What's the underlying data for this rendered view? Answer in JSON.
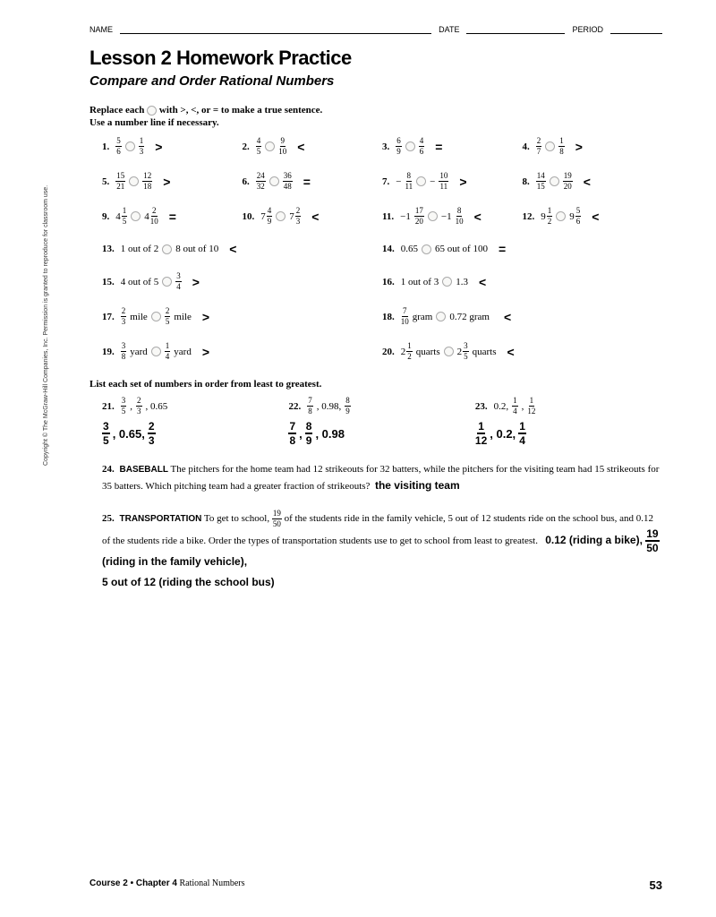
{
  "header": {
    "name": "NAME",
    "date": "DATE",
    "period": "PERIOD"
  },
  "title": "Lesson 2 Homework Practice",
  "subtitle": "Compare and Order Rational Numbers",
  "instr1": "Replace each",
  "instr1b": "with >, <, or = to make a true sentence.",
  "instr2": "Use a number line if necessary.",
  "p": {
    "1": {
      "n": "1.",
      "a": {
        "n": "5",
        "d": "6"
      },
      "b": {
        "n": "1",
        "d": "3"
      },
      "ans": ">"
    },
    "2": {
      "n": "2.",
      "a": {
        "n": "4",
        "d": "5"
      },
      "b": {
        "n": "9",
        "d": "10"
      },
      "ans": "<"
    },
    "3": {
      "n": "3.",
      "a": {
        "n": "6",
        "d": "9"
      },
      "b": {
        "n": "4",
        "d": "6"
      },
      "ans": "="
    },
    "4": {
      "n": "4.",
      "a": {
        "n": "2",
        "d": "7"
      },
      "b": {
        "n": "1",
        "d": "8"
      },
      "ans": ">"
    },
    "5": {
      "n": "5.",
      "a": {
        "n": "15",
        "d": "21"
      },
      "b": {
        "n": "12",
        "d": "18"
      },
      "ans": ">"
    },
    "6": {
      "n": "6.",
      "a": {
        "n": "24",
        "d": "32"
      },
      "b": {
        "n": "36",
        "d": "48"
      },
      "ans": "="
    },
    "7": {
      "n": "7.",
      "a": {
        "s": "−",
        "n": "8",
        "d": "11"
      },
      "b": {
        "s": "−",
        "n": "10",
        "d": "11"
      },
      "ans": ">"
    },
    "8": {
      "n": "8.",
      "a": {
        "n": "14",
        "d": "15"
      },
      "b": {
        "n": "19",
        "d": "20"
      },
      "ans": "<"
    },
    "9": {
      "n": "9.",
      "a": {
        "w": "4",
        "n": "1",
        "d": "5"
      },
      "b": {
        "w": "4",
        "n": "2",
        "d": "10"
      },
      "ans": "="
    },
    "10": {
      "n": "10.",
      "a": {
        "w": "7",
        "n": "4",
        "d": "9"
      },
      "b": {
        "w": "7",
        "n": "2",
        "d": "3"
      },
      "ans": "<"
    },
    "11": {
      "n": "11.",
      "a": {
        "s": "−1",
        "n": "17",
        "d": "20"
      },
      "b": {
        "s": "−1",
        "n": "8",
        "d": "10"
      },
      "ans": "<"
    },
    "12": {
      "n": "12.",
      "a": {
        "w": "9",
        "n": "1",
        "d": "2"
      },
      "b": {
        "w": "9",
        "n": "5",
        "d": "6"
      },
      "ans": "<"
    },
    "13": {
      "n": "13.",
      "a": "1 out of 2",
      "b": "8 out of 10",
      "ans": "<"
    },
    "14": {
      "n": "14.",
      "a": "0.65",
      "b": "65 out of 100",
      "ans": "="
    },
    "15": {
      "n": "15.",
      "a": "4 out of 5",
      "bf": {
        "n": "3",
        "d": "4"
      },
      "ans": ">"
    },
    "16": {
      "n": "16.",
      "a": "1 out of 3",
      "b": "1.3",
      "ans": "<"
    },
    "17": {
      "n": "17.",
      "af": {
        "n": "2",
        "d": "3"
      },
      "au": "mile",
      "bf": {
        "n": "2",
        "d": "5"
      },
      "bu": "mile",
      "ans": ">"
    },
    "18": {
      "n": "18.",
      "af": {
        "n": "7",
        "d": "10"
      },
      "au": "gram",
      "b": "0.72 gram",
      "ans": "<"
    },
    "19": {
      "n": "19.",
      "af": {
        "n": "3",
        "d": "8"
      },
      "au": "yard",
      "bf": {
        "n": "1",
        "d": "4"
      },
      "bu": "yard",
      "ans": ">"
    },
    "20": {
      "n": "20.",
      "am": {
        "w": "2",
        "n": "1",
        "d": "2"
      },
      "au": "quarts",
      "bm": {
        "w": "2",
        "n": "3",
        "d": "5"
      },
      "bu": "quarts",
      "ans": "<"
    }
  },
  "instr3": "List each set of numbers in order from least to greatest.",
  "list": {
    "21": {
      "n": "21.",
      "q": [
        {
          "n": "3",
          "d": "5"
        },
        {
          "t": ", "
        },
        {
          "n": "2",
          "d": "3"
        },
        {
          "t": ", 0.65"
        }
      ],
      "ans": [
        {
          "n": "3",
          "d": "5"
        },
        {
          "t": ", 0.65, "
        },
        {
          "n": "2",
          "d": "3"
        }
      ]
    },
    "22": {
      "n": "22.",
      "q": [
        {
          "n": "7",
          "d": "8"
        },
        {
          "t": ", 0.98, "
        },
        {
          "n": "8",
          "d": "9"
        }
      ],
      "ans": [
        {
          "n": "7",
          "d": "8"
        },
        {
          "t": ", "
        },
        {
          "n": "8",
          "d": "9"
        },
        {
          "t": ", 0.98"
        }
      ]
    },
    "23": {
      "n": "23.",
      "q": [
        {
          "t": "0.2, "
        },
        {
          "n": "1",
          "d": "4"
        },
        {
          "t": ", "
        },
        {
          "n": "1",
          "d": "12"
        }
      ],
      "ans": [
        {
          "n": "1",
          "d": "12"
        },
        {
          "t": ", 0.2, "
        },
        {
          "n": "1",
          "d": "4"
        }
      ]
    }
  },
  "word24": {
    "n": "24.",
    "topic": "BASEBALL",
    "text": "The pitchers for the home team had 12 strikeouts for 32 batters, while the pitchers for the visiting team had 15 strikeouts for 35 batters. Which pitching team had a greater fraction of strikeouts?",
    "ans": "the visiting team"
  },
  "word25": {
    "n": "25.",
    "topic": "TRANSPORTATION",
    "t1": "To get to school, ",
    "f1": {
      "n": "19",
      "d": "50"
    },
    "t2": " of the students ride in the family vehicle, 5 out of 12 students ride on the school bus, and 0.12 of the students ride a bike. Order the types of transportation students use to get to school from least to greatest.",
    "ans1": "0.12 (riding a bike), ",
    "ansf": {
      "n": "19",
      "d": "50"
    },
    "ans2": " (riding in the family vehicle),",
    "ans3": "5 out of 12 (riding the school bus)"
  },
  "copyright": "Copyright © The McGraw-Hill Companies, Inc. Permission is granted to reproduce for classroom use.",
  "footer": {
    "course": "Course 2 • Chapter 4",
    "chname": "Rational Numbers",
    "page": "53"
  }
}
